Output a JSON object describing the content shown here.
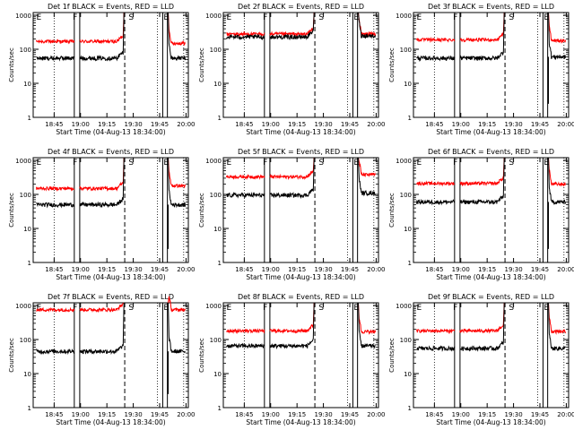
{
  "chart_data": {
    "type": "line",
    "x_ticks": [
      "18:45",
      "19:00",
      "19:15",
      "19:30",
      "19:45",
      "20:00"
    ],
    "y_ticks": [
      "1",
      "10",
      "100",
      "1000"
    ],
    "y_scale": "log",
    "ylim": [
      1,
      1200
    ],
    "xlabel": "Start Time (04-Aug-13 18:34:00)",
    "ylabel": "Counts/sec",
    "colors": {
      "events": "#000000",
      "lld": "#ff0000"
    },
    "grid": false,
    "marker_labels": [
      "E",
      "F",
      "S",
      "E"
    ],
    "panels": [
      {
        "title": "Det 1f BLACK = Events, RED = LLD",
        "events_level": 55,
        "lld_level": 170,
        "events_end_level": 55,
        "lld_end_level": 150,
        "dip": false
      },
      {
        "title": "Det 2f BLACK = Events, RED = LLD",
        "events_level": 230,
        "lld_level": 280,
        "events_end_level": 250,
        "lld_end_level": 280,
        "dip": false
      },
      {
        "title": "Det 3f BLACK = Events, RED = LLD",
        "events_level": 55,
        "lld_level": 190,
        "events_end_level": 60,
        "lld_end_level": 180,
        "dip": true
      },
      {
        "title": "Det 4f BLACK = Events, RED = LLD",
        "events_level": 50,
        "lld_level": 150,
        "events_end_level": 50,
        "lld_end_level": 180,
        "dip": true
      },
      {
        "title": "Det 5f BLACK = Events, RED = LLD",
        "events_level": 95,
        "lld_level": 330,
        "events_end_level": 110,
        "lld_end_level": 380,
        "dip": false
      },
      {
        "title": "Det 6f BLACK = Events, RED = LLD",
        "events_level": 60,
        "lld_level": 210,
        "events_end_level": 60,
        "lld_end_level": 200,
        "dip": true
      },
      {
        "title": "Det 7f BLACK = Events, RED = LLD",
        "events_level": 45,
        "lld_level": 750,
        "events_end_level": 45,
        "lld_end_level": 750,
        "dip": true
      },
      {
        "title": "Det 8f BLACK = Events, RED = LLD",
        "events_level": 65,
        "lld_level": 180,
        "events_end_level": 65,
        "lld_end_level": 170,
        "dip": false
      },
      {
        "title": "Det 9f BLACK = Events, RED = LLD",
        "events_level": 55,
        "lld_level": 180,
        "events_end_level": 55,
        "lld_end_level": 170,
        "dip": false
      }
    ]
  }
}
